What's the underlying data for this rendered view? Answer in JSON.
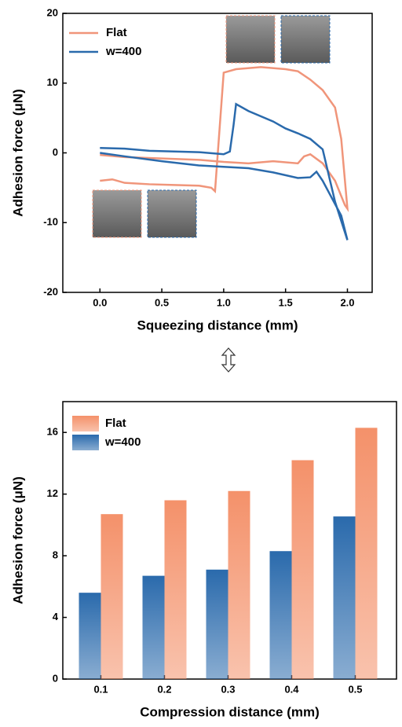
{
  "chart_data": [
    {
      "type": "line",
      "xlabel": "Squeezing distance (mm)",
      "ylabel": "Adhesion force (μN)",
      "xlim": [
        -0.3,
        2.2
      ],
      "ylim": [
        -20,
        20
      ],
      "xticks": [
        {
          "value": 0,
          "label": "0.0"
        },
        {
          "value": 0.5,
          "label": "0.5"
        },
        {
          "value": 1,
          "label": "1.0"
        },
        {
          "value": 1.5,
          "label": "1.5"
        },
        {
          "value": 2,
          "label": "2.0"
        }
      ],
      "yticks": [
        -20,
        -10,
        0,
        10,
        20
      ],
      "legend": "upper left",
      "series": [
        {
          "name": "Flat",
          "color": "#f0957a",
          "x": [
            0,
            0.1,
            0.2,
            0.4,
            0.6,
            0.8,
            0.9,
            0.93,
            1.0,
            1.1,
            1.3,
            1.5,
            1.6,
            1.7,
            1.8,
            1.9,
            1.95,
            2.0,
            1.98,
            1.9,
            1.8,
            1.7,
            1.65,
            1.6,
            1.4,
            1.2,
            1.0,
            0.8,
            0.5,
            0.2,
            0
          ],
          "values": [
            -4,
            -3.8,
            -4.3,
            -4.5,
            -4.6,
            -4.7,
            -5,
            -5.5,
            11.5,
            12,
            12.3,
            12,
            11.7,
            10.5,
            9,
            6.5,
            2,
            -8,
            -7.5,
            -4,
            -1.5,
            -0.2,
            -0.5,
            -1.5,
            -1.2,
            -1.5,
            -1.3,
            -1,
            -0.8,
            -0.6,
            -0.3
          ]
        },
        {
          "name": "w=400",
          "color": "#2a6aac",
          "x": [
            0,
            0.2,
            0.4,
            0.6,
            0.8,
            1.0,
            1.05,
            1.08,
            1.1,
            1.2,
            1.4,
            1.5,
            1.6,
            1.7,
            1.8,
            1.9,
            2.0,
            1.95,
            1.8,
            1.75,
            1.7,
            1.6,
            1.4,
            1.2,
            1.0,
            0.8,
            0.5,
            0.2,
            0
          ],
          "values": [
            0.7,
            0.6,
            0.3,
            0.2,
            0.1,
            -0.2,
            0.2,
            4,
            7,
            6,
            4.5,
            3.5,
            2.8,
            2,
            0.5,
            -7,
            -12.5,
            -9,
            -4,
            -2.7,
            -3.5,
            -3.6,
            -2.8,
            -2.2,
            -2,
            -1.8,
            -1.2,
            -0.5,
            0
          ]
        }
      ]
    },
    {
      "type": "bar",
      "xlabel": "Compression distance (mm)",
      "ylabel": "Adhesion force (μN)",
      "categories": [
        "0.1",
        "0.2",
        "0.3",
        "0.4",
        "0.5"
      ],
      "ylim": [
        0,
        18
      ],
      "yticks": [
        0,
        4,
        8,
        12,
        16
      ],
      "legend": "upper left",
      "series": [
        {
          "name": "w=400",
          "color": "#2a6aac",
          "values": [
            5.6,
            6.7,
            7.1,
            8.3,
            10.55
          ]
        },
        {
          "name": "Flat",
          "color": "#f4916a",
          "values": [
            10.7,
            11.6,
            12.2,
            14.2,
            16.3
          ]
        }
      ]
    }
  ]
}
